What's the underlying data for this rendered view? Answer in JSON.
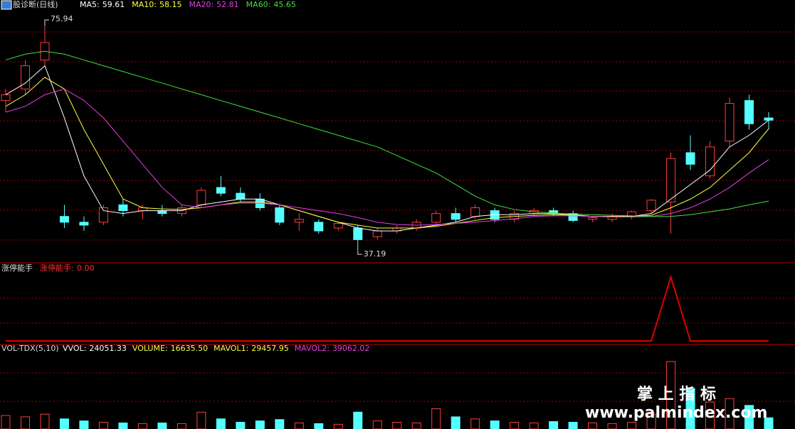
{
  "main": {
    "title": "股诊断(日线)",
    "ylim": [
      35,
      80.35
    ],
    "ma": [
      {
        "label": "MA5:",
        "value": 59.61,
        "color": "#ffffff",
        "values": [
          64,
          66,
          69,
          60,
          50,
          44,
          43.5,
          44,
          44,
          44,
          45,
          45.5,
          46,
          46,
          45,
          44,
          43,
          42,
          41,
          40.5,
          40.5,
          41,
          41.5,
          42,
          43,
          43.3,
          43.3,
          43.5,
          43.5,
          43.3,
          43,
          43,
          43,
          43.5,
          46,
          48.5,
          51,
          55,
          57,
          59.61
        ]
      },
      {
        "label": "MA10:",
        "value": 58.15,
        "color": "#ffff40",
        "values": [
          62,
          64,
          67,
          65,
          58,
          52,
          46,
          44.5,
          44.3,
          44.2,
          44.5,
          45,
          45.5,
          45.5,
          45,
          44,
          43,
          42,
          41.5,
          41,
          41,
          41,
          41.3,
          41.8,
          42.3,
          42.8,
          43,
          43.2,
          43.3,
          43.2,
          43,
          43,
          43,
          43.2,
          44.5,
          46,
          48,
          51,
          54,
          58.15
        ]
      },
      {
        "label": "MA20:",
        "value": 52.81,
        "color": "#e040e0",
        "values": [
          61,
          62,
          64,
          65,
          63,
          60,
          56,
          52,
          48,
          45,
          44.5,
          45,
          45.3,
          45.3,
          45,
          44.5,
          44,
          43.5,
          42.8,
          42,
          41.6,
          41.5,
          41.6,
          41.8,
          42,
          42.3,
          42.6,
          43,
          43.1,
          43.1,
          43,
          42.9,
          42.9,
          43,
          43.5,
          44.5,
          46,
          48,
          50.5,
          52.81
        ]
      },
      {
        "label": "MA60:",
        "value": 45.65,
        "color": "#40e040",
        "values": [
          70,
          71,
          71.5,
          71,
          70,
          69,
          68,
          67,
          66,
          65,
          64,
          63,
          62,
          61,
          60,
          59,
          58,
          57,
          56,
          55,
          53.5,
          52,
          50.5,
          48.5,
          46.5,
          45,
          44.2,
          43.8,
          43.6,
          43.4,
          43.3,
          43.2,
          43.1,
          43,
          43,
          43.3,
          43.8,
          44.3,
          45,
          45.65
        ]
      }
    ],
    "candles": [
      [
        63,
        65,
        61,
        64
      ],
      [
        65,
        70,
        64,
        69
      ],
      [
        70,
        75.94,
        69,
        73
      ],
      [
        43,
        45,
        41,
        42
      ],
      [
        42,
        43,
        40.5,
        41.5
      ],
      [
        42,
        45,
        41.5,
        44.5
      ],
      [
        45,
        46,
        43,
        44
      ],
      [
        44,
        45,
        42.5,
        44.5
      ],
      [
        44,
        45,
        43,
        43.5
      ],
      [
        43.5,
        45,
        43,
        44.5
      ],
      [
        45,
        48,
        44.5,
        47.5
      ],
      [
        48,
        50,
        46.5,
        47
      ],
      [
        47,
        48,
        45.5,
        46
      ],
      [
        46,
        47,
        44,
        44.5
      ],
      [
        44.5,
        45,
        41.5,
        42
      ],
      [
        42,
        43.5,
        40.5,
        42.5
      ],
      [
        42,
        42.5,
        40,
        40.5
      ],
      [
        41,
        42,
        40.5,
        41.8
      ],
      [
        41,
        41.5,
        37.19,
        39
      ],
      [
        39.5,
        41,
        39,
        40.5
      ],
      [
        40.5,
        41.5,
        40,
        41
      ],
      [
        41,
        42.5,
        40.5,
        42
      ],
      [
        42,
        44,
        41.5,
        43.5
      ],
      [
        43.5,
        44.5,
        42,
        42.5
      ],
      [
        43,
        45,
        42.5,
        44.5
      ],
      [
        44,
        44.5,
        42,
        42.5
      ],
      [
        42.5,
        44,
        42,
        43.5
      ],
      [
        43.5,
        44.5,
        43,
        44
      ],
      [
        44,
        44.5,
        43,
        43.5
      ],
      [
        43.5,
        44,
        42,
        42.3
      ],
      [
        42.5,
        43,
        42,
        42.8
      ],
      [
        42.5,
        43.5,
        42,
        43
      ],
      [
        43,
        44,
        42.5,
        43.8
      ],
      [
        44,
        46,
        43.5,
        45.8
      ],
      [
        45.5,
        54,
        40,
        53
      ],
      [
        54,
        57,
        51,
        52
      ],
      [
        50,
        56,
        49.5,
        55
      ],
      [
        56,
        63.5,
        55,
        62.5
      ],
      [
        63,
        64,
        58,
        59
      ],
      [
        60,
        61,
        58,
        59.61
      ]
    ],
    "high_label": "75.94",
    "low_label": "37.19"
  },
  "limit": {
    "title": "涨停能手",
    "label": "涨停能手:",
    "value": 0,
    "value_label": "0.00",
    "ylim": [
      0,
      1
    ],
    "values": [
      0,
      0,
      0,
      0,
      0,
      0,
      0,
      0,
      0,
      0,
      0,
      0,
      0,
      0,
      0,
      0,
      0,
      0,
      0,
      0,
      0,
      0,
      0,
      0,
      0,
      0,
      0,
      0,
      0,
      0,
      0,
      0,
      0,
      0,
      1,
      0,
      0,
      0,
      0,
      0
    ]
  },
  "volume": {
    "title": "VOL-TDX(5,10)",
    "ylim": [
      0,
      120000
    ],
    "labels": [
      {
        "label": "VVOL:",
        "value": 24051.33,
        "value_label": "24051.33",
        "color": "#ffffff"
      },
      {
        "label": "VOLUME:",
        "value": 16635.5,
        "value_label": "16635.50",
        "color": "#ffff40"
      },
      {
        "label": "MAVOL1:",
        "value": 29457.95,
        "value_label": "29457.95",
        "color": "#ffff40"
      },
      {
        "label": "MAVOL2:",
        "value": 39062.02,
        "value_label": "39062.02",
        "color": "#e040e0"
      }
    ],
    "values": [
      20000,
      18000,
      22000,
      15000,
      12000,
      10000,
      9000,
      8000,
      9000,
      8000,
      25000,
      15000,
      10000,
      12000,
      14000,
      9000,
      8000,
      7000,
      25000,
      12000,
      10000,
      9000,
      30000,
      18000,
      15000,
      12000,
      10000,
      9000,
      11000,
      10000,
      9000,
      8000,
      10000,
      22000,
      100000,
      60000,
      40000,
      45000,
      35000,
      16635.5
    ]
  },
  "watermark": {
    "title": "掌 上 指 标",
    "url": "www.palmindex.com"
  }
}
